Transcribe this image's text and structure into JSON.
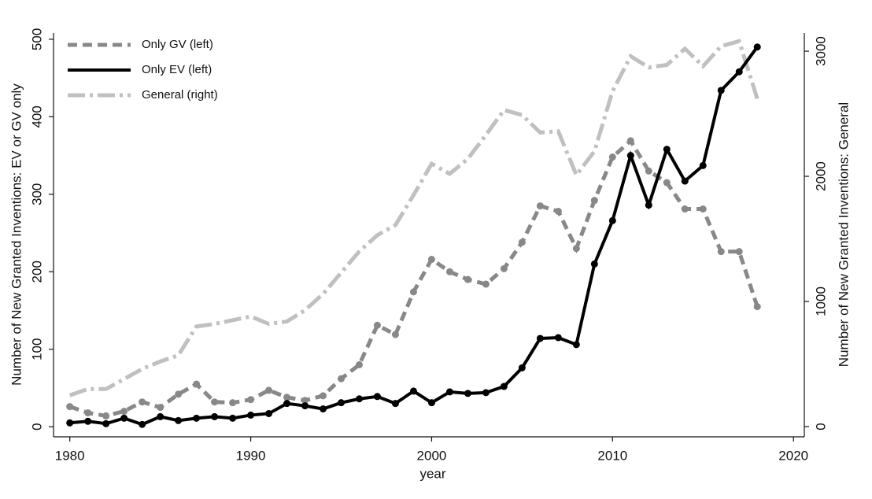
{
  "chart_data": {
    "type": "line",
    "x_label": "year",
    "y_label": "Number of New Granted Inventions: EV or GV only",
    "y2_label": "Number of New Granted Inventions: General",
    "x": [
      1980,
      1981,
      1982,
      1983,
      1984,
      1985,
      1986,
      1987,
      1988,
      1989,
      1990,
      1991,
      1992,
      1993,
      1994,
      1995,
      1996,
      1997,
      1998,
      1999,
      2000,
      2001,
      2002,
      2003,
      2004,
      2005,
      2006,
      2007,
      2008,
      2009,
      2010,
      2011,
      2012,
      2013,
      2014,
      2015,
      2016,
      2017,
      2018
    ],
    "series": [
      {
        "name": "Only GV (left)",
        "color": "#888888",
        "linestyle": "dashed",
        "markers": true,
        "values": [
          26,
          18,
          14,
          20,
          32,
          25,
          42,
          55,
          32,
          31,
          35,
          47,
          38,
          34,
          40,
          62,
          80,
          131,
          119,
          174,
          216,
          200,
          190,
          184,
          204,
          238,
          285,
          278,
          230,
          292,
          348,
          369,
          330,
          315,
          281,
          281,
          226,
          226,
          155
        ]
      },
      {
        "name": "Only EV (left)",
        "color": "#000000",
        "linestyle": "solid",
        "markers": true,
        "values": [
          5,
          7,
          4,
          11,
          3,
          13,
          8,
          11,
          13,
          11,
          15,
          17,
          30,
          27,
          23,
          31,
          36,
          39,
          30,
          46,
          31,
          45,
          43,
          44,
          52,
          76,
          114,
          115,
          106,
          210,
          266,
          350,
          286,
          358,
          317,
          337,
          434,
          458,
          490
        ]
      },
      {
        "name": "General (right)",
        "color": "#c0c0c0",
        "linestyle": "dashdot",
        "markers": false,
        "axis": "y2",
        "values": [
          250,
          300,
          300,
          380,
          460,
          520,
          570,
          800,
          820,
          850,
          880,
          820,
          840,
          930,
          1060,
          1230,
          1400,
          1530,
          1610,
          1850,
          2100,
          2020,
          2140,
          2330,
          2530,
          2490,
          2350,
          2360,
          2010,
          2200,
          2680,
          2960,
          2870,
          2890,
          3020,
          2880,
          3040,
          3080,
          2620
        ]
      }
    ],
    "xlim": [
      1979.1,
      2020.6
    ],
    "xticks": [
      1980,
      1990,
      2000,
      2010,
      2020
    ],
    "ylim": [
      -13,
      508
    ],
    "yticks": [
      0,
      100,
      200,
      300,
      400,
      500
    ],
    "y2lim": [
      -82,
      3145
    ],
    "y2ticks": [
      0,
      1000,
      2000,
      3000
    ],
    "legend": "top-left"
  }
}
